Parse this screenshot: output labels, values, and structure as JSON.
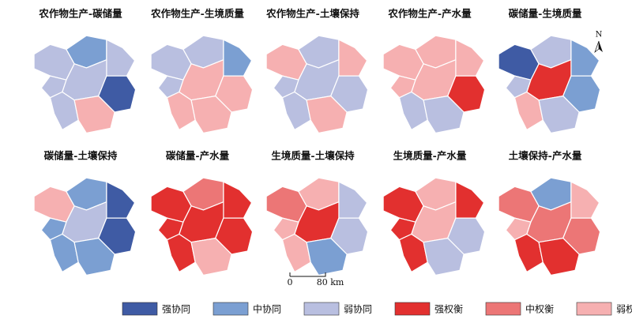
{
  "maps": [
    {
      "title": "农作物生产-碳储量"
    },
    {
      "title": "农作物生产-生境质量"
    },
    {
      "title": "农作物生产-土壤保持"
    },
    {
      "title": "农作物生产-产水量"
    },
    {
      "title": "碳储量-生境质量"
    },
    {
      "title": "碳储量-土壤保持"
    },
    {
      "title": "碳储量-产水量"
    },
    {
      "title": "生境质量-土壤保持"
    },
    {
      "title": "生境质量-产水量"
    },
    {
      "title": "土壤保持-产水量"
    }
  ],
  "north": "N",
  "scale_bar": {
    "start": "0",
    "end": "80 km"
  },
  "legend": [
    {
      "label": "强协同",
      "color": "#3f5ba4"
    },
    {
      "label": "中协同",
      "color": "#7b9fd2"
    },
    {
      "label": "弱协同",
      "color": "#b9bfe0"
    },
    {
      "label": "强权衡",
      "color": "#e2302f"
    },
    {
      "label": "中权衡",
      "color": "#ec7676"
    },
    {
      "label": "弱权衡",
      "color": "#f6b0b1"
    }
  ]
}
